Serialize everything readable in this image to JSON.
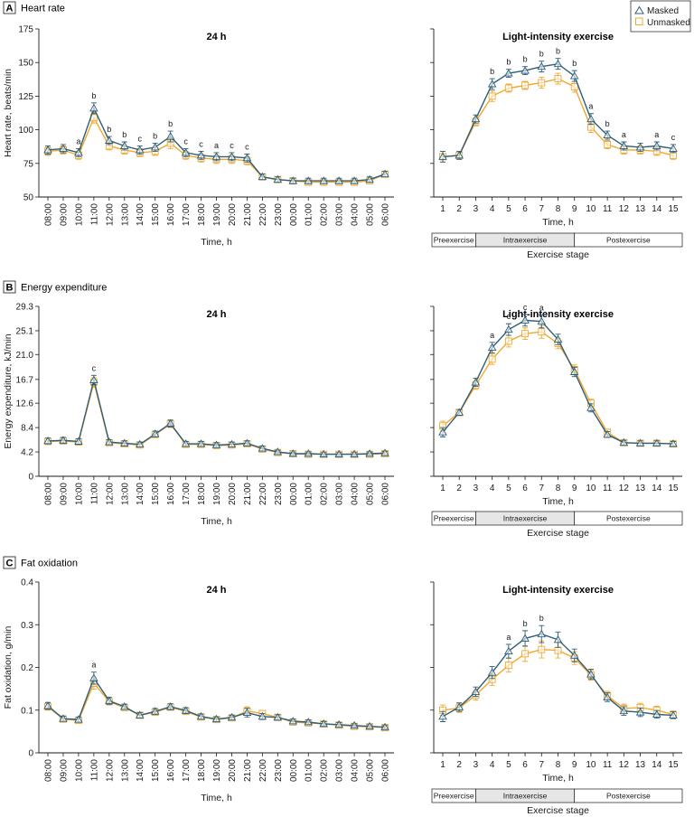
{
  "colors": {
    "masked": "#2e5e78",
    "unmasked": "#f0a830",
    "axis": "#1a1a1a",
    "intra_fill": "#e6e6e6"
  },
  "legend": {
    "masked": "Masked",
    "unmasked": "Unmasked",
    "masked_marker": "triangle",
    "unmasked_marker": "square"
  },
  "time_labels": [
    "08:00",
    "09:00",
    "10:00",
    "11:00",
    "12:00",
    "13:00",
    "14:00",
    "15:00",
    "16:00",
    "17:00",
    "18:00",
    "19:00",
    "20:00",
    "21:00",
    "22:00",
    "23:00",
    "00:00",
    "01:00",
    "02:00",
    "03:00",
    "04:00",
    "05:00",
    "06:00"
  ],
  "stage_labels": [
    "1",
    "2",
    "3",
    "4",
    "5",
    "6",
    "7",
    "8",
    "9",
    "10",
    "11",
    "12",
    "13",
    "14",
    "15"
  ],
  "stage_bar": {
    "pre": "Preexercise",
    "intra": "Intraexercise",
    "post": "Postexercise",
    "pre_range": [
      1,
      3
    ],
    "intra_range": [
      3,
      9
    ],
    "post_range": [
      9,
      15
    ]
  },
  "axis_text": {
    "time": "Time, h",
    "stage": "Exercise stage"
  },
  "chart_data": [
    {
      "panel": "A",
      "title": "Heart rate",
      "type": "line",
      "ylabel": "Heart rate, beats/min",
      "yticks": [
        "50",
        "75",
        "100",
        "125",
        "150",
        "175"
      ],
      "ylim": [
        50,
        175
      ],
      "left": {
        "title": "24 h",
        "masked": [
          85,
          86,
          83,
          116,
          92,
          88,
          85,
          87,
          95,
          83,
          81,
          80,
          80,
          79,
          65,
          63,
          62,
          62,
          62,
          62,
          62,
          63,
          67
        ],
        "unmasked": [
          84,
          85,
          81,
          109,
          88,
          85,
          83,
          84,
          90,
          81,
          79,
          78,
          78,
          77,
          65,
          63,
          62,
          61,
          61,
          61,
          61,
          62,
          67
        ],
        "errors": [
          3,
          3,
          3,
          4,
          3,
          3,
          3,
          3,
          4,
          3,
          3,
          3,
          3,
          3,
          2,
          2,
          2,
          2,
          2,
          2,
          2,
          2,
          2
        ],
        "sig": [
          "",
          "",
          "a",
          "b",
          "b",
          "b",
          "c",
          "b",
          "b",
          "c",
          "c",
          "a",
          "c",
          "c",
          "",
          "",
          "",
          "",
          "",
          "",
          "",
          "",
          ""
        ]
      },
      "right": {
        "title": "Light-intensity exercise",
        "masked": [
          80,
          81,
          108,
          134,
          142,
          144,
          147,
          149,
          140,
          108,
          96,
          88,
          87,
          88,
          86
        ],
        "unmasked": [
          80,
          81,
          106,
          125,
          131,
          133,
          135,
          138,
          132,
          102,
          89,
          85,
          85,
          84,
          81
        ],
        "errors": [
          4,
          3,
          3,
          4,
          3,
          3,
          4,
          4,
          4,
          4,
          3,
          3,
          3,
          3,
          3
        ],
        "sig": [
          "",
          "",
          "",
          "b",
          "b",
          "b",
          "b",
          "b",
          "b",
          "a",
          "b",
          "a",
          "",
          "a",
          "c"
        ]
      }
    },
    {
      "panel": "B",
      "title": "Energy expenditure",
      "type": "line",
      "ylabel": "Energy expenditure, kJ/min",
      "yticks": [
        "0",
        "4.2",
        "8.4",
        "12.6",
        "16.7",
        "21.0",
        "25.1",
        "29.3"
      ],
      "ylim": [
        0,
        29.3
      ],
      "left": {
        "title": "24 h",
        "masked": [
          6.1,
          6.2,
          6.0,
          16.6,
          5.9,
          5.7,
          5.5,
          7.3,
          9.1,
          5.6,
          5.6,
          5.4,
          5.5,
          5.7,
          4.8,
          4.2,
          3.9,
          3.9,
          3.8,
          3.8,
          3.8,
          3.9,
          4.0
        ],
        "unmasked": [
          6.0,
          6.1,
          5.9,
          16.2,
          5.8,
          5.6,
          5.4,
          7.2,
          9.0,
          5.5,
          5.5,
          5.3,
          5.4,
          5.6,
          4.7,
          4.1,
          3.9,
          3.8,
          3.8,
          3.8,
          3.8,
          3.8,
          3.9
        ],
        "errors": [
          0.5,
          0.5,
          0.5,
          0.8,
          0.4,
          0.4,
          0.4,
          0.5,
          0.6,
          0.4,
          0.4,
          0.4,
          0.4,
          0.4,
          0.4,
          0.3,
          0.3,
          0.3,
          0.3,
          0.3,
          0.3,
          0.3,
          0.3
        ],
        "sig": [
          "",
          "",
          "",
          "c",
          "",
          "",
          "",
          "",
          "",
          "",
          "",
          "",
          "",
          "",
          "",
          "",
          "",
          "",
          "",
          "",
          "",
          "",
          ""
        ]
      },
      "right": {
        "title": "Light-intensity exercise",
        "masked": [
          7.6,
          11.0,
          16.2,
          22.2,
          25.3,
          26.9,
          26.7,
          23.6,
          18.0,
          11.8,
          7.2,
          5.8,
          5.7,
          5.7,
          5.6
        ],
        "unmasked": [
          8.7,
          11.0,
          15.7,
          20.2,
          23.3,
          24.6,
          24.9,
          22.9,
          18.4,
          12.6,
          7.6,
          5.8,
          5.7,
          5.7,
          5.6
        ],
        "errors": [
          0.8,
          0.5,
          0.7,
          0.9,
          1.0,
          1.0,
          1.1,
          0.9,
          0.8,
          0.7,
          0.5,
          0.4,
          0.4,
          0.4,
          0.4
        ],
        "sig": [
          "",
          "",
          "",
          "a",
          "c",
          "c",
          "a",
          "",
          "",
          "",
          "",
          "",
          "",
          "",
          ""
        ]
      }
    },
    {
      "panel": "C",
      "title": "Fat oxidation",
      "type": "line",
      "ylabel": "Fat oxidation, g/min",
      "yticks": [
        "0",
        "0.1",
        "0.2",
        "0.3",
        "0.4"
      ],
      "ylim": [
        0,
        0.4
      ],
      "left": {
        "title": "24 h",
        "masked": [
          0.11,
          0.08,
          0.078,
          0.175,
          0.122,
          0.108,
          0.088,
          0.097,
          0.108,
          0.099,
          0.085,
          0.079,
          0.083,
          0.094,
          0.085,
          0.083,
          0.074,
          0.072,
          0.068,
          0.066,
          0.064,
          0.062,
          0.06
        ],
        "unmasked": [
          0.108,
          0.079,
          0.076,
          0.163,
          0.12,
          0.106,
          0.088,
          0.095,
          0.107,
          0.097,
          0.084,
          0.078,
          0.082,
          0.098,
          0.092,
          0.083,
          0.072,
          0.07,
          0.068,
          0.065,
          0.062,
          0.061,
          0.059
        ],
        "errors": [
          0.008,
          0.006,
          0.006,
          0.014,
          0.008,
          0.006,
          0.006,
          0.007,
          0.007,
          0.007,
          0.006,
          0.005,
          0.005,
          0.01,
          0.007,
          0.006,
          0.005,
          0.005,
          0.005,
          0.005,
          0.004,
          0.004,
          0.004
        ],
        "sig": [
          "",
          "",
          "",
          "a",
          "",
          "",
          "",
          "",
          "",
          "",
          "",
          "",
          "",
          "",
          "",
          "",
          "",
          "",
          "",
          "",
          "",
          "",
          ""
        ]
      },
      "right": {
        "title": "Light-intensity exercise",
        "masked": [
          0.085,
          0.107,
          0.143,
          0.188,
          0.238,
          0.268,
          0.278,
          0.265,
          0.228,
          0.184,
          0.13,
          0.098,
          0.095,
          0.09,
          0.088
        ],
        "unmasked": [
          0.1,
          0.105,
          0.135,
          0.172,
          0.205,
          0.232,
          0.242,
          0.24,
          0.222,
          0.182,
          0.134,
          0.104,
          0.106,
          0.1,
          0.09
        ],
        "errors": [
          0.012,
          0.01,
          0.011,
          0.014,
          0.016,
          0.018,
          0.02,
          0.018,
          0.015,
          0.012,
          0.01,
          0.01,
          0.01,
          0.009,
          0.008
        ],
        "sig": [
          "",
          "",
          "",
          "",
          "a",
          "b",
          "b",
          "",
          "",
          "",
          "",
          "",
          "",
          "",
          ""
        ]
      }
    }
  ]
}
